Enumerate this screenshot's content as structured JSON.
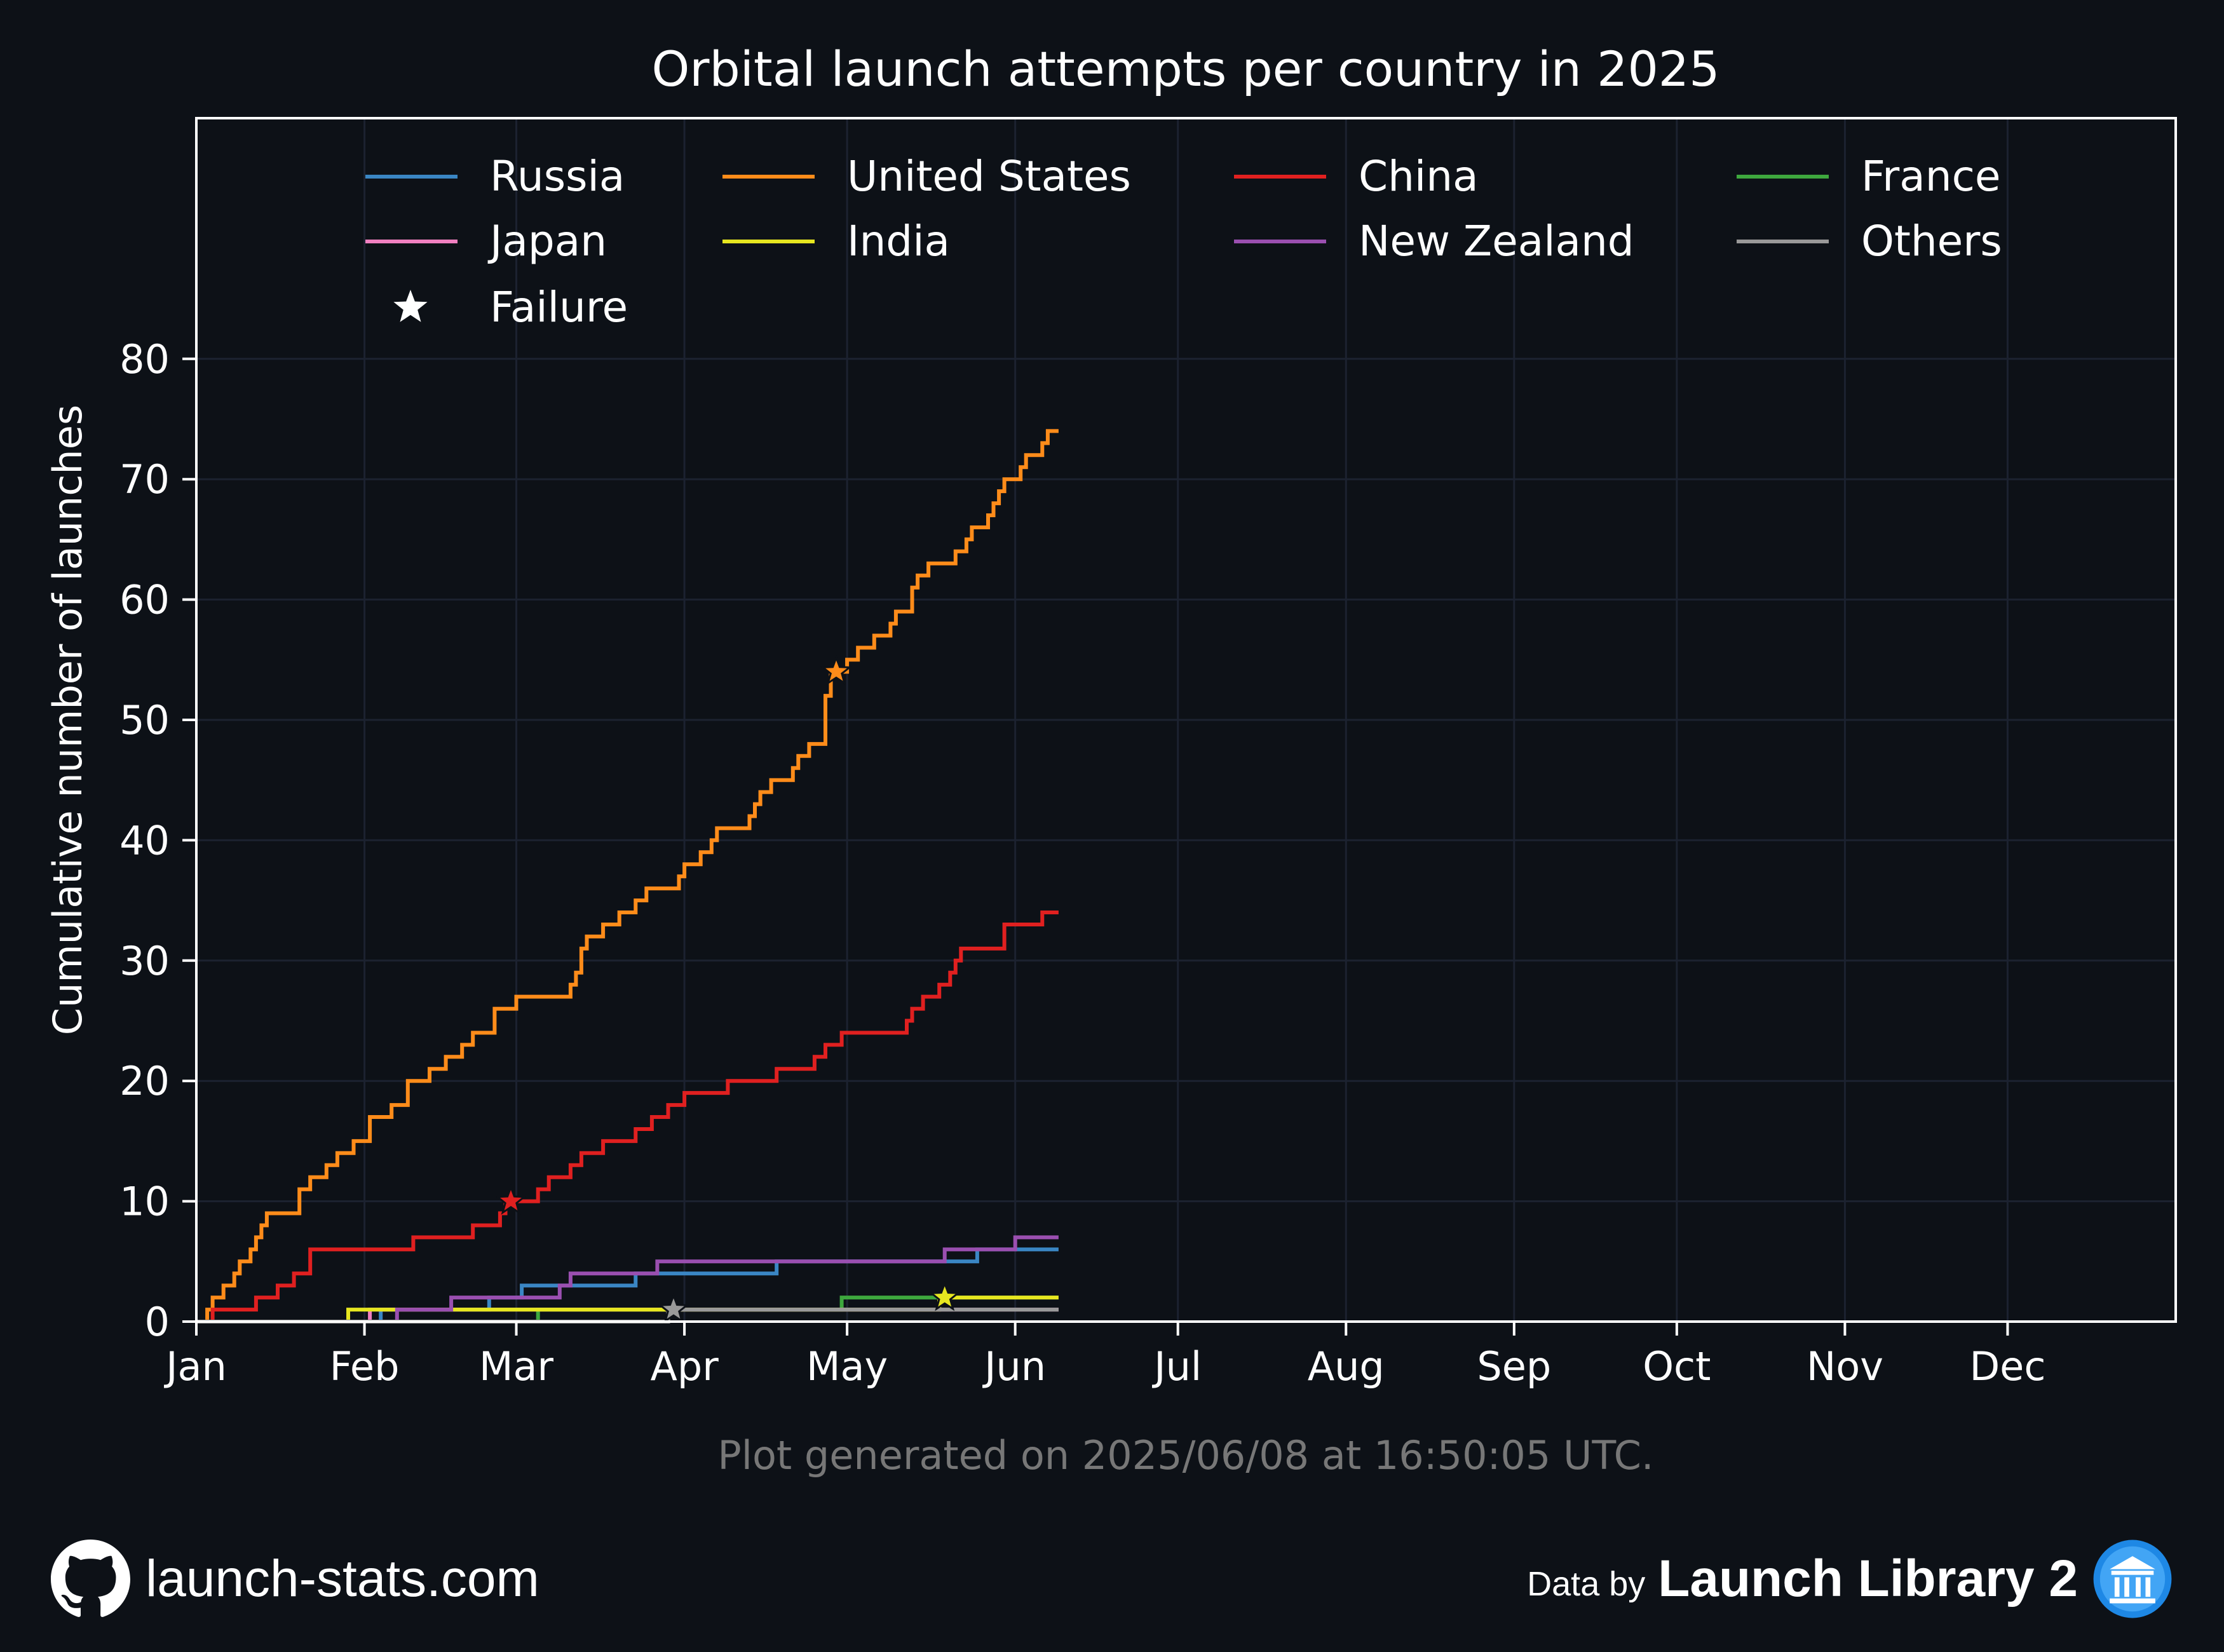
{
  "chart_data": {
    "type": "line",
    "title": "Orbital launch attempts per country in 2025",
    "xlabel": "",
    "ylabel": "Cumulative number of launches",
    "x_unit": "day of year 2025",
    "xlim": [
      1,
      366
    ],
    "ylim": [
      0,
      100
    ],
    "x_ticks": [
      {
        "label": "Jan",
        "day": 1
      },
      {
        "label": "Feb",
        "day": 32
      },
      {
        "label": "Mar",
        "day": 60
      },
      {
        "label": "Apr",
        "day": 91
      },
      {
        "label": "May",
        "day": 121
      },
      {
        "label": "Jun",
        "day": 152
      },
      {
        "label": "Jul",
        "day": 182
      },
      {
        "label": "Aug",
        "day": 213
      },
      {
        "label": "Sep",
        "day": 244
      },
      {
        "label": "Oct",
        "day": 274
      },
      {
        "label": "Nov",
        "day": 305
      },
      {
        "label": "Dec",
        "day": 335
      }
    ],
    "y_ticks": [
      0,
      10,
      20,
      30,
      40,
      50,
      60,
      70,
      80
    ],
    "grid": true,
    "legend_position": "top",
    "series": [
      {
        "name": "Russia",
        "color": "#3a86c4",
        "end_day": 160,
        "steps": [
          [
            35,
            1
          ],
          [
            55,
            2
          ],
          [
            61,
            3
          ],
          [
            82,
            4
          ],
          [
            98,
            4
          ],
          [
            108,
            5
          ],
          [
            145,
            6
          ]
        ],
        "failures": []
      },
      {
        "name": "United States",
        "color": "#ff8c1a",
        "end_day": 160,
        "steps": [
          [
            3,
            1
          ],
          [
            4,
            2
          ],
          [
            6,
            3
          ],
          [
            8,
            4
          ],
          [
            9,
            5
          ],
          [
            11,
            6
          ],
          [
            12,
            7
          ],
          [
            13,
            8
          ],
          [
            14,
            9
          ],
          [
            20,
            11
          ],
          [
            22,
            12
          ],
          [
            25,
            13
          ],
          [
            27,
            14
          ],
          [
            30,
            15
          ],
          [
            33,
            17
          ],
          [
            37,
            18
          ],
          [
            40,
            20
          ],
          [
            44,
            21
          ],
          [
            47,
            22
          ],
          [
            50,
            23
          ],
          [
            52,
            24
          ],
          [
            56,
            26
          ],
          [
            60,
            27
          ],
          [
            70,
            28
          ],
          [
            71,
            29
          ],
          [
            72,
            31
          ],
          [
            73,
            32
          ],
          [
            76,
            33
          ],
          [
            79,
            34
          ],
          [
            82,
            35
          ],
          [
            84,
            36
          ],
          [
            90,
            37
          ],
          [
            91,
            38
          ],
          [
            94,
            39
          ],
          [
            96,
            40
          ],
          [
            97,
            41
          ],
          [
            103,
            42
          ],
          [
            104,
            43
          ],
          [
            105,
            44
          ],
          [
            107,
            45
          ],
          [
            111,
            46
          ],
          [
            112,
            47
          ],
          [
            114,
            48
          ],
          [
            117,
            49
          ],
          [
            117,
            50
          ],
          [
            117,
            51
          ],
          [
            117,
            52
          ],
          [
            118,
            53
          ],
          [
            118,
            54
          ],
          [
            121,
            55
          ],
          [
            123,
            56
          ],
          [
            126,
            57
          ],
          [
            129,
            58
          ],
          [
            130,
            59
          ],
          [
            133,
            60
          ],
          [
            133,
            61
          ],
          [
            134,
            62
          ],
          [
            136,
            63
          ],
          [
            141,
            64
          ],
          [
            143,
            65
          ],
          [
            144,
            66
          ],
          [
            147,
            67
          ],
          [
            148,
            68
          ],
          [
            149,
            69
          ],
          [
            150,
            70
          ],
          [
            153,
            71
          ],
          [
            154,
            72
          ],
          [
            157,
            73
          ],
          [
            158,
            74
          ]
        ],
        "failures": [
          [
            119,
            54
          ]
        ]
      },
      {
        "name": "China",
        "color": "#e02020",
        "end_day": 160,
        "steps": [
          [
            4,
            1
          ],
          [
            12,
            2
          ],
          [
            16,
            3
          ],
          [
            19,
            4
          ],
          [
            22,
            6
          ],
          [
            41,
            7
          ],
          [
            52,
            8
          ],
          [
            57,
            9
          ],
          [
            58,
            10
          ],
          [
            64,
            11
          ],
          [
            66,
            12
          ],
          [
            70,
            13
          ],
          [
            72,
            14
          ],
          [
            76,
            15
          ],
          [
            82,
            16
          ],
          [
            85,
            17
          ],
          [
            88,
            18
          ],
          [
            91,
            19
          ],
          [
            99,
            20
          ],
          [
            108,
            21
          ],
          [
            115,
            22
          ],
          [
            117,
            23
          ],
          [
            120,
            24
          ],
          [
            132,
            25
          ],
          [
            133,
            26
          ],
          [
            135,
            27
          ],
          [
            138,
            28
          ],
          [
            140,
            29
          ],
          [
            141,
            30
          ],
          [
            142,
            31
          ],
          [
            150,
            33
          ],
          [
            157,
            34
          ]
        ],
        "failures": [
          [
            59,
            10
          ]
        ]
      },
      {
        "name": "France",
        "color": "#3ea83e",
        "end_day": 160,
        "steps": [
          [
            64,
            1
          ],
          [
            120,
            2
          ],
          [
            140,
            2
          ]
        ],
        "failures": []
      },
      {
        "name": "Japan",
        "color": "#f080c0",
        "end_day": 160,
        "steps": [
          [
            33,
            1
          ]
        ],
        "failures": []
      },
      {
        "name": "India",
        "color": "#e6e620",
        "end_day": 160,
        "steps": [
          [
            29,
            1
          ],
          [
            84,
            1
          ],
          [
            138,
            2
          ]
        ],
        "failures": [
          [
            139,
            2
          ]
        ]
      },
      {
        "name": "New Zealand",
        "color": "#9a4fb0",
        "end_day": 160,
        "steps": [
          [
            38,
            1
          ],
          [
            48,
            2
          ],
          [
            68,
            3
          ],
          [
            70,
            4
          ],
          [
            86,
            5
          ],
          [
            139,
            6
          ],
          [
            152,
            7
          ]
        ],
        "failures": []
      },
      {
        "name": "Others",
        "color": "#999999",
        "end_day": 160,
        "steps": [
          [
            88,
            1
          ]
        ],
        "failures": [
          [
            89,
            1
          ]
        ]
      }
    ],
    "failure_legend": "Failure",
    "note": "Plot generated on 2025/06/08 at 16:50:05 UTC."
  },
  "footer": {
    "site": "launch-stats.com",
    "data_by": "Data by",
    "source": "Launch Library 2"
  }
}
